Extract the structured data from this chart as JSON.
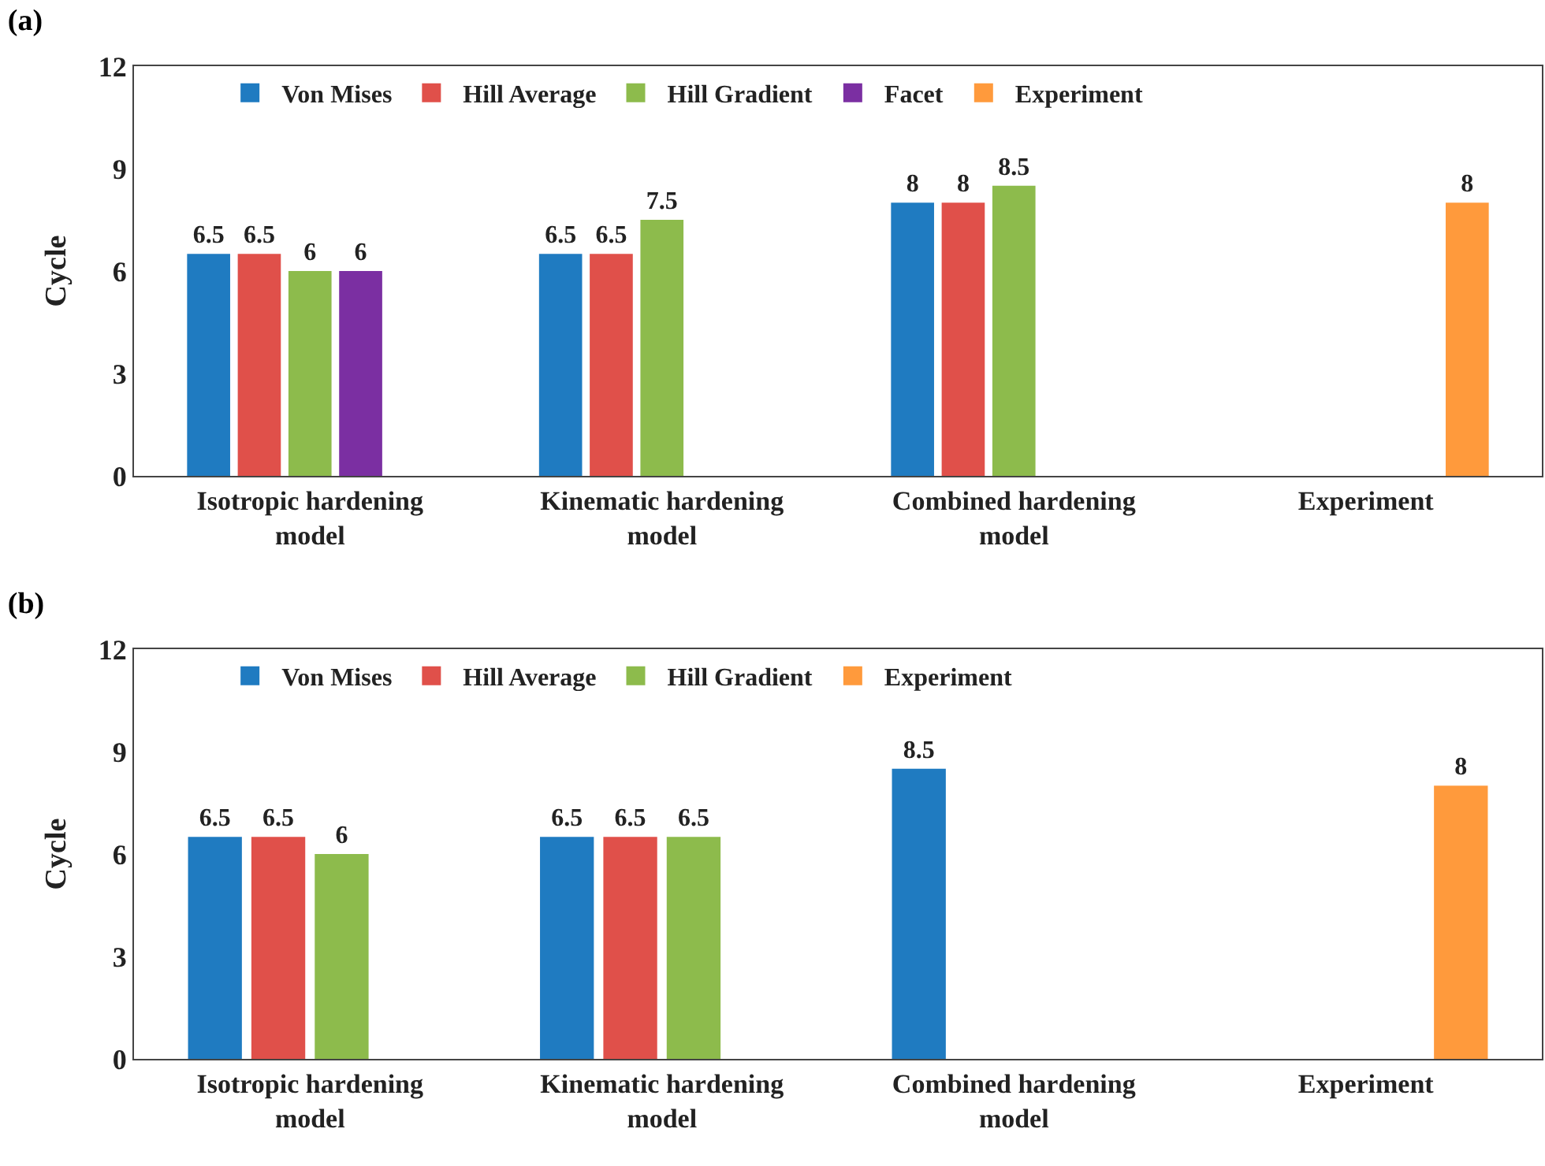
{
  "chart_data": [
    {
      "type": "bar",
      "title": "(a)",
      "ylabel": "Cycle",
      "categories": [
        "Isotropic hardening model",
        "Kinematic hardening model",
        "Combined hardening model",
        "Experiment"
      ],
      "ylim": [
        0,
        12
      ],
      "yticks": [
        0,
        3,
        6,
        9,
        12
      ],
      "grid": false,
      "legend": "top",
      "data_labels": true,
      "series": [
        {
          "name": "Von Mises",
          "color": "#1f7bc1",
          "values": [
            6.5,
            6.5,
            8,
            null
          ]
        },
        {
          "name": "Hill Average",
          "color": "#e0504a",
          "values": [
            6.5,
            6.5,
            8,
            null
          ]
        },
        {
          "name": "Hill Gradient",
          "color": "#8dbb4c",
          "values": [
            6,
            7.5,
            8.5,
            null
          ]
        },
        {
          "name": "Facet",
          "color": "#7b2fa2",
          "values": [
            6,
            null,
            null,
            null
          ]
        },
        {
          "name": "Experiment",
          "color": "#ff9a3c",
          "values": [
            null,
            null,
            null,
            8
          ]
        }
      ]
    },
    {
      "type": "bar",
      "title": "(b)",
      "ylabel": "Cycle",
      "categories": [
        "Isotropic hardening model",
        "Kinematic hardening model",
        "Combined hardening model",
        "Experiment"
      ],
      "ylim": [
        0,
        12
      ],
      "yticks": [
        0,
        3,
        6,
        9,
        12
      ],
      "grid": false,
      "legend": "top",
      "data_labels": true,
      "series": [
        {
          "name": "Von Mises",
          "color": "#1f7bc1",
          "values": [
            6.5,
            6.5,
            8.5,
            null
          ]
        },
        {
          "name": "Hill Average",
          "color": "#e0504a",
          "values": [
            6.5,
            6.5,
            null,
            null
          ]
        },
        {
          "name": "Hill Gradient",
          "color": "#8dbb4c",
          "values": [
            6,
            6.5,
            null,
            null
          ]
        },
        {
          "name": "Experiment",
          "color": "#ff9a3c",
          "values": [
            null,
            null,
            null,
            8
          ]
        }
      ]
    }
  ]
}
